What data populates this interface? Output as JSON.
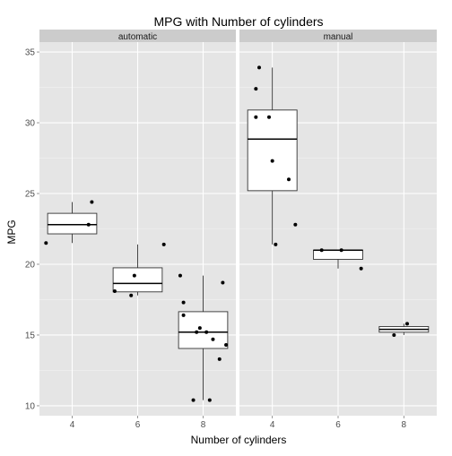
{
  "chart_data": {
    "type": "box",
    "title": "MPG with Number of cylinders",
    "xlabel": "Number of cylinders",
    "ylabel": "MPG",
    "ylim": [
      9.3,
      35.7
    ],
    "yticks": [
      10,
      15,
      20,
      25,
      30,
      35
    ],
    "categories": [
      "4",
      "6",
      "8"
    ],
    "grid": true,
    "overlay": "jittered points",
    "facets": [
      {
        "label": "automatic",
        "boxes": [
          {
            "category": "4",
            "q1": 22.15,
            "median": 22.8,
            "q3": 23.6,
            "whisker_low": 21.5,
            "whisker_high": 24.4
          },
          {
            "category": "6",
            "q1": 18.05,
            "median": 18.65,
            "q3": 19.75,
            "whisker_low": 17.8,
            "whisker_high": 21.4
          },
          {
            "category": "8",
            "q1": 14.05,
            "median": 15.2,
            "q3": 16.65,
            "whisker_low": 10.4,
            "whisker_high": 19.2
          }
        ],
        "points": [
          {
            "x": 3.2,
            "y": 21.5
          },
          {
            "x": 4.5,
            "y": 22.8
          },
          {
            "x": 4.6,
            "y": 24.4
          },
          {
            "x": 5.3,
            "y": 18.1
          },
          {
            "x": 5.8,
            "y": 17.8
          },
          {
            "x": 5.9,
            "y": 19.2
          },
          {
            "x": 6.8,
            "y": 21.4
          },
          {
            "x": 7.3,
            "y": 19.2
          },
          {
            "x": 7.4,
            "y": 17.3
          },
          {
            "x": 7.4,
            "y": 16.4
          },
          {
            "x": 7.7,
            "y": 10.4
          },
          {
            "x": 7.8,
            "y": 15.2
          },
          {
            "x": 7.9,
            "y": 15.5
          },
          {
            "x": 8.1,
            "y": 15.2
          },
          {
            "x": 8.2,
            "y": 10.4
          },
          {
            "x": 8.3,
            "y": 14.7
          },
          {
            "x": 8.5,
            "y": 13.3
          },
          {
            "x": 8.6,
            "y": 18.7
          },
          {
            "x": 8.7,
            "y": 14.3
          }
        ]
      },
      {
        "label": "manual",
        "boxes": [
          {
            "category": "4",
            "q1": 25.2,
            "median": 28.85,
            "q3": 30.9,
            "whisker_low": 21.4,
            "whisker_high": 33.9
          },
          {
            "category": "6",
            "q1": 20.35,
            "median": 21.0,
            "q3": 21.0,
            "whisker_low": 19.7,
            "whisker_high": 21.0
          },
          {
            "category": "8",
            "q1": 15.2,
            "median": 15.4,
            "q3": 15.6,
            "whisker_low": 15.0,
            "whisker_high": 15.8
          }
        ],
        "points": [
          {
            "x": 3.5,
            "y": 30.4
          },
          {
            "x": 3.5,
            "y": 32.4
          },
          {
            "x": 3.6,
            "y": 33.9
          },
          {
            "x": 3.9,
            "y": 30.4
          },
          {
            "x": 4.0,
            "y": 27.3
          },
          {
            "x": 4.1,
            "y": 21.4
          },
          {
            "x": 4.5,
            "y": 26.0
          },
          {
            "x": 4.7,
            "y": 22.8
          },
          {
            "x": 5.5,
            "y": 21.0
          },
          {
            "x": 6.1,
            "y": 21.0
          },
          {
            "x": 6.7,
            "y": 19.7
          },
          {
            "x": 7.7,
            "y": 15.0
          },
          {
            "x": 8.1,
            "y": 15.8
          }
        ]
      }
    ]
  }
}
